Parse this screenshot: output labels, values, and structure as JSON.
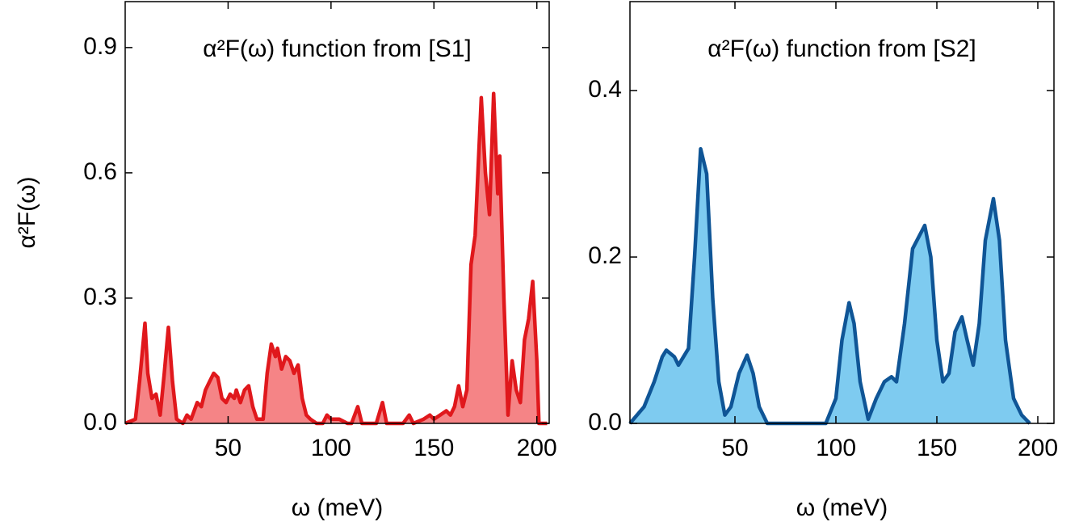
{
  "chart_data": [
    {
      "type": "area",
      "title": "α²F(ω) function from [S1]",
      "xlabel": "ω (meV)",
      "ylabel": "α²F(ω)",
      "color": "#e0181c",
      "fill_color": "#f58486",
      "xlim": [
        0,
        206
      ],
      "ylim": [
        0,
        1.01
      ],
      "xticks": [
        50,
        100,
        150,
        200
      ],
      "yticks": [
        {
          "value": 0,
          "label": "0.0"
        },
        0.3,
        0.6,
        0.9
      ],
      "x": [
        0,
        5,
        7,
        9.6,
        11,
        13,
        15,
        17,
        19,
        21,
        23,
        25,
        28,
        30,
        32,
        35,
        37,
        39,
        41,
        43,
        45,
        47,
        49,
        51,
        53,
        54,
        56,
        58,
        60,
        62,
        64,
        67,
        69,
        71,
        73,
        74,
        76,
        78,
        80,
        82,
        84,
        86,
        88,
        90,
        93,
        96,
        98,
        100,
        104,
        108,
        110,
        113,
        115,
        122,
        125,
        127,
        135,
        138,
        140,
        145,
        148,
        150,
        153,
        156,
        158,
        160,
        162,
        164,
        166,
        168,
        170,
        173,
        175,
        177,
        179,
        181,
        182,
        184,
        186,
        188,
        190,
        192,
        194,
        196,
        198,
        200,
        201,
        205
      ],
      "values": [
        0,
        0.01,
        0.1,
        0.24,
        0.12,
        0.06,
        0.07,
        0.02,
        0.12,
        0.23,
        0.1,
        0.01,
        0.0,
        0.02,
        0.01,
        0.05,
        0.04,
        0.08,
        0.1,
        0.12,
        0.11,
        0.06,
        0.05,
        0.07,
        0.06,
        0.08,
        0.05,
        0.08,
        0.09,
        0.04,
        0.01,
        0.01,
        0.12,
        0.19,
        0.16,
        0.18,
        0.13,
        0.16,
        0.15,
        0.12,
        0.14,
        0.06,
        0.02,
        0.01,
        0.0,
        0.0,
        0.02,
        0.01,
        0.01,
        0.0,
        0.0,
        0.04,
        0.0,
        0.0,
        0.05,
        0.0,
        0.0,
        0.02,
        0.0,
        0.01,
        0.02,
        0.01,
        0.02,
        0.03,
        0.02,
        0.04,
        0.09,
        0.04,
        0.08,
        0.38,
        0.45,
        0.78,
        0.6,
        0.5,
        0.79,
        0.55,
        0.64,
        0.3,
        0.02,
        0.15,
        0.08,
        0.05,
        0.2,
        0.25,
        0.34,
        0.15,
        0.0,
        0.0
      ]
    },
    {
      "type": "area",
      "title": "α²F(ω) function from [S2]",
      "xlabel": "ω (meV)",
      "color": "#0f5596",
      "fill_color": "#7ecbf0",
      "xlim": [
        -2,
        208
      ],
      "ylim": [
        0,
        0.507
      ],
      "xticks": [
        50,
        100,
        150,
        200
      ],
      "yticks": [
        {
          "value": 0,
          "label": "0.0"
        },
        0.2,
        0.4
      ],
      "x": [
        -2,
        5,
        10,
        14,
        16,
        20,
        22,
        27,
        30,
        33,
        36,
        39,
        42,
        45,
        48,
        52,
        56,
        59,
        62,
        66,
        95,
        100,
        103,
        106.5,
        109,
        112,
        116,
        120,
        124,
        127.5,
        130,
        134,
        138,
        144,
        147,
        150,
        153,
        156,
        159,
        162.4,
        165,
        168,
        171,
        174,
        178,
        181,
        184,
        188,
        192,
        196
      ],
      "values": [
        0,
        0.02,
        0.05,
        0.08,
        0.088,
        0.08,
        0.07,
        0.09,
        0.2,
        0.33,
        0.3,
        0.15,
        0.05,
        0.01,
        0.02,
        0.06,
        0.082,
        0.06,
        0.02,
        0.0,
        0.0,
        0.03,
        0.1,
        0.145,
        0.12,
        0.05,
        0.005,
        0.03,
        0.05,
        0.056,
        0.05,
        0.12,
        0.21,
        0.238,
        0.2,
        0.1,
        0.05,
        0.06,
        0.11,
        0.128,
        0.1,
        0.07,
        0.12,
        0.22,
        0.27,
        0.22,
        0.1,
        0.03,
        0.01,
        0.0
      ]
    }
  ]
}
